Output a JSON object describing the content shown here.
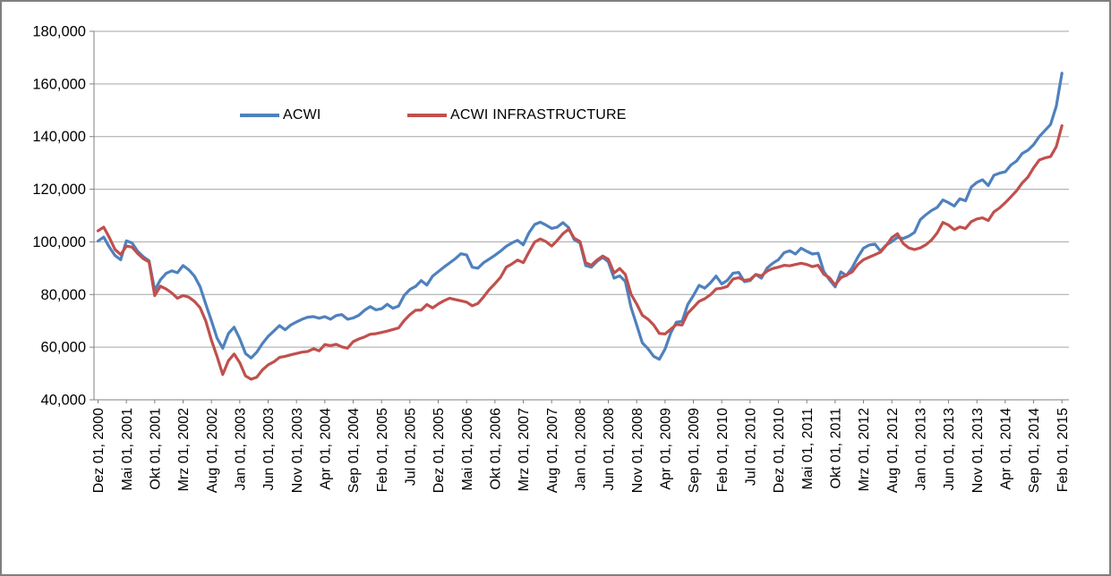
{
  "window": {
    "background": "#ffffff",
    "frame_border_color": "#7f7f7f"
  },
  "colors": {
    "acwi_line": "#4F81BD",
    "acwi_infrastructure_line": "#C0504D",
    "gridline": "#A6A6A6",
    "axis": "#808080",
    "text": "#000000"
  },
  "legend": {
    "items": [
      {
        "label": "ACWI",
        "color": "#4F81BD"
      },
      {
        "label": "ACWI INFRASTRUCTURE",
        "color": "#C0504D"
      }
    ]
  },
  "chart_data": {
    "type": "line",
    "title": "",
    "xlabel": "",
    "ylabel": "",
    "ylim": [
      40000,
      180000
    ],
    "grid": true,
    "legend_position": "top-inside",
    "x_tick_interval_months": 5,
    "y_tick_values": [
      40000,
      60000,
      80000,
      100000,
      120000,
      140000,
      160000,
      180000
    ],
    "y_tick_labels": [
      "40,000",
      "60,000",
      "80,000",
      "100,000",
      "120,000",
      "140,000",
      "160,000",
      "180,000"
    ],
    "x_tick_labels": [
      "Dez 01, 2000",
      "Mai 01, 2001",
      "Okt 01, 2001",
      "Mrz 01, 2002",
      "Aug 01, 2002",
      "Jan 01, 2003",
      "Jun 01, 2003",
      "Nov 01, 2003",
      "Apr 01, 2004",
      "Sep 01, 2004",
      "Feb 01, 2005",
      "Jul 01, 2005",
      "Dez 01, 2005",
      "Mai 01, 2006",
      "Okt 01, 2006",
      "Mrz 01, 2007",
      "Aug 01, 2007",
      "Jan 01, 2008",
      "Jun 01, 2008",
      "Nov 01, 2008",
      "Apr 01, 2009",
      "Sep 01, 2009",
      "Feb 01, 2010",
      "Jul 01, 2010",
      "Dez 01, 2010",
      "Mai 01, 2011",
      "Okt 01, 2011",
      "Mrz 01, 2012",
      "Aug 01, 2012",
      "Jan 01, 2013",
      "Jun 01, 2013",
      "Nov 01, 2013",
      "Apr 01, 2014",
      "Sep 01, 2014",
      "Feb 01, 2015"
    ],
    "series": [
      {
        "name": "ACWI",
        "color": "#4F81BD",
        "values": [
          100300,
          101800,
          98000,
          94800,
          93200,
          100400,
          99600,
          96400,
          94300,
          92800,
          81600,
          85600,
          88000,
          89000,
          88300,
          91000,
          89400,
          87000,
          83000,
          76400,
          70000,
          63400,
          59600,
          65200,
          67600,
          63200,
          57600,
          55900,
          58100,
          61400,
          64100,
          66100,
          68200,
          66600,
          68400,
          69600,
          70600,
          71400,
          71600,
          71000,
          71600,
          70600,
          72000,
          72400,
          70600,
          71100,
          72100,
          74000,
          75400,
          74200,
          74600,
          76300,
          74800,
          75600,
          79700,
          81900,
          83100,
          85300,
          83600,
          87000,
          88700,
          90400,
          92000,
          93600,
          95500,
          95000,
          90400,
          90000,
          92100,
          93500,
          94900,
          96500,
          98300,
          99600,
          100600,
          98900,
          103400,
          106600,
          107500,
          106400,
          105100,
          105600,
          107300,
          105400,
          100800,
          99600,
          91000,
          90400,
          92600,
          94100,
          92400,
          86200,
          87100,
          85000,
          75100,
          68400,
          61600,
          59400,
          56500,
          55400,
          59300,
          65400,
          69500,
          69800,
          76200,
          79600,
          83500,
          82400,
          84400,
          87000,
          84000,
          85400,
          88100,
          88400,
          84900,
          85300,
          87600,
          86200,
          90100,
          91900,
          93200,
          95900,
          96600,
          95400,
          97600,
          96400,
          95400,
          95700,
          88700,
          85600,
          82900,
          88600,
          87200,
          90200,
          94200,
          97600,
          98800,
          99200,
          96500,
          98800,
          100100,
          101700,
          101300,
          102200,
          103600,
          108400,
          110300,
          111900,
          113100,
          115900,
          114900,
          113600,
          116400,
          115600,
          120800,
          122600,
          123600,
          121400,
          125300,
          126100,
          126600,
          129200,
          130700,
          133600,
          134800,
          136900,
          140000,
          142300,
          144600,
          151600,
          164100
        ]
      },
      {
        "name": "ACWI INFRASTRUCTURE",
        "color": "#C0504D",
        "values": [
          104200,
          105600,
          101600,
          97100,
          95200,
          98400,
          98000,
          95600,
          93600,
          92400,
          79600,
          83200,
          82100,
          80600,
          78600,
          79600,
          79000,
          77400,
          75000,
          70000,
          62600,
          56400,
          49600,
          54900,
          57400,
          54100,
          49100,
          47800,
          48600,
          51400,
          53300,
          54400,
          56100,
          56500,
          57100,
          57600,
          58100,
          58400,
          59400,
          58600,
          61000,
          60600,
          61100,
          60100,
          59600,
          62100,
          63100,
          63900,
          64900,
          65100,
          65600,
          66100,
          66700,
          67300,
          70100,
          72300,
          74000,
          74100,
          76200,
          74900,
          76400,
          77600,
          78600,
          78100,
          77600,
          77100,
          75700,
          76600,
          79100,
          81900,
          84100,
          86600,
          90400,
          91600,
          93100,
          92100,
          96100,
          99900,
          101100,
          100100,
          98400,
          100600,
          103100,
          104800,
          101400,
          100100,
          92100,
          91100,
          93100,
          94600,
          93400,
          88200,
          89900,
          87600,
          80100,
          76400,
          72100,
          70600,
          68400,
          65200,
          65000,
          66800,
          68600,
          68400,
          72900,
          75100,
          77400,
          78400,
          79900,
          82100,
          82400,
          83100,
          85900,
          86400,
          85400,
          85700,
          87600,
          87100,
          88900,
          89900,
          90400,
          91100,
          90900,
          91400,
          91900,
          91400,
          90600,
          91100,
          87700,
          86400,
          83600,
          86400,
          87400,
          88600,
          91400,
          93200,
          94200,
          95100,
          96100,
          98600,
          101600,
          103100,
          99400,
          97700,
          97100,
          97700,
          98900,
          100700,
          103400,
          107400,
          106400,
          104600,
          105700,
          105100,
          107700,
          108700,
          109100,
          108100,
          111400,
          112900,
          114900,
          117100,
          119400,
          122400,
          124600,
          128100,
          131100,
          131900,
          132400,
          136200,
          144100
        ]
      }
    ]
  }
}
